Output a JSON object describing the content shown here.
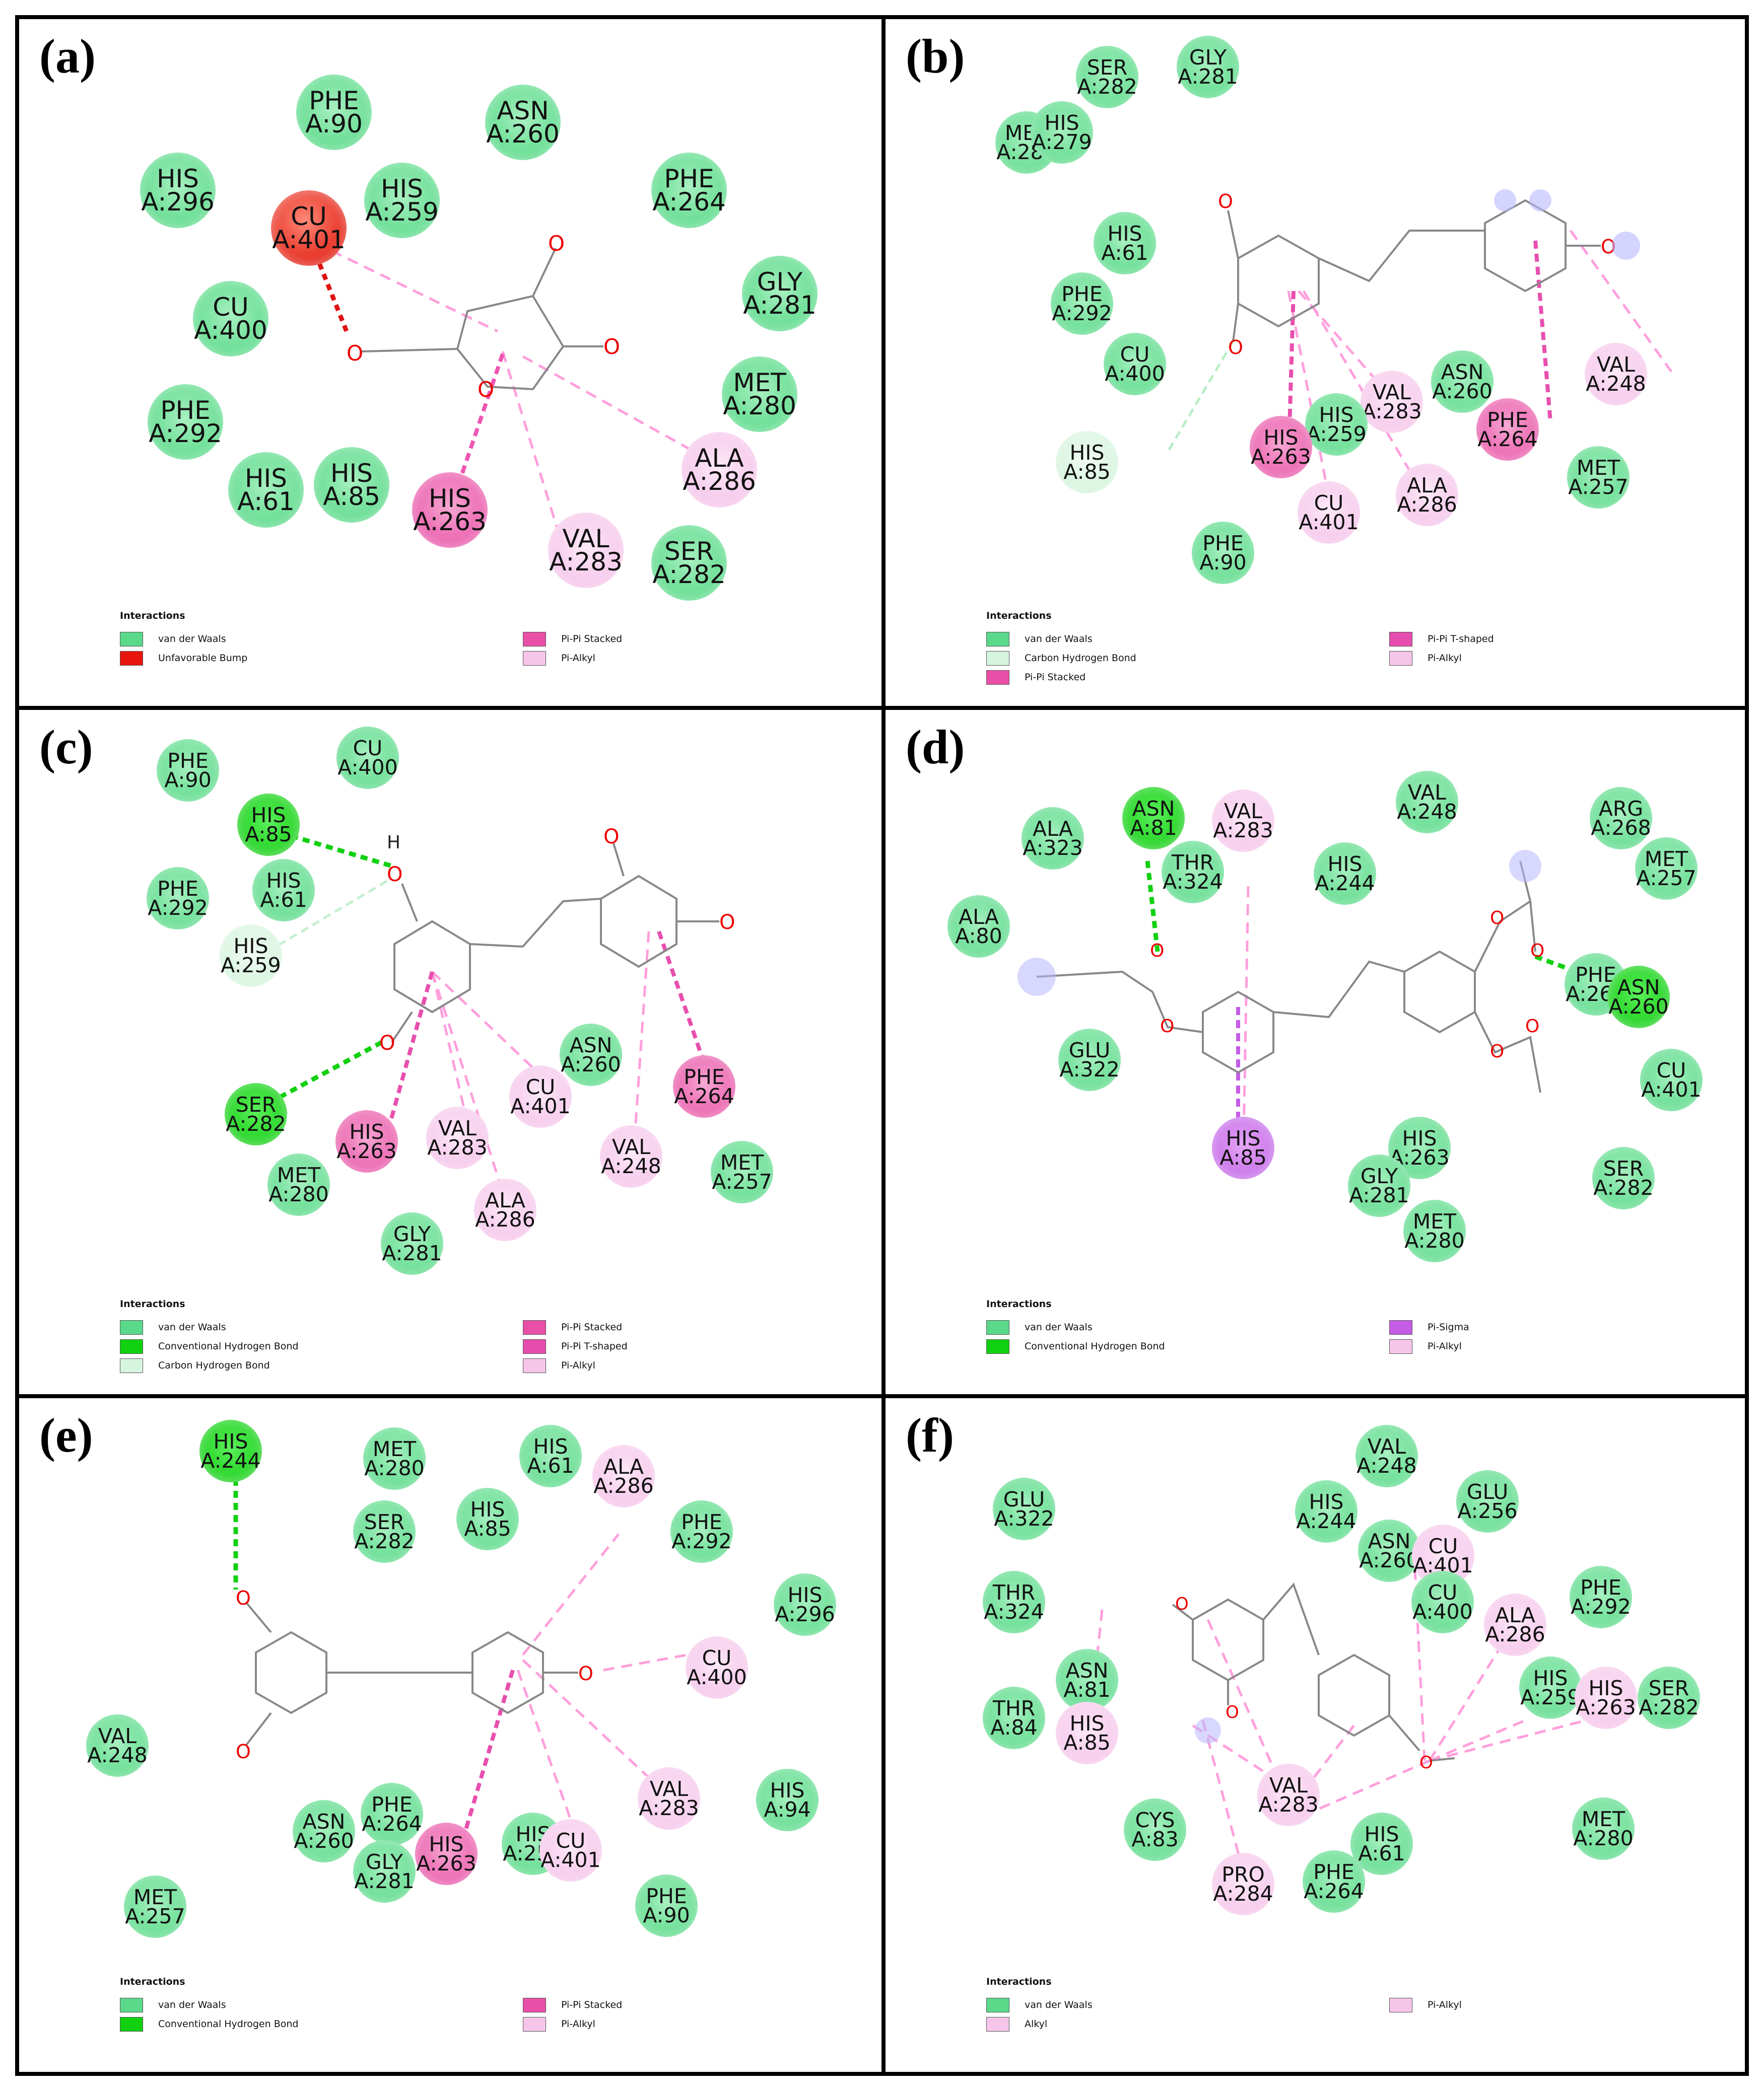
{
  "legend_title": "Interactions",
  "legend_labels": {
    "vdw": "van der Waals",
    "unf": "Unfavorable Bump",
    "pps": "Pi-Pi Stacked",
    "pal": "Pi-Alkyl",
    "chb": "Carbon Hydrogen Bond",
    "chd": "Conventional Hydrogen Bond",
    "pts": "Pi-Pi T-shaped",
    "psg": "Pi-Sigma",
    "alk": "Alkyl"
  },
  "interaction_colors": {
    "vdw": "#5ad98a",
    "unf": "#e8150e",
    "pps": "#ea4fa8",
    "pal": "#f6c6ea",
    "chb": "#d6f5df",
    "chd": "#10d010",
    "pts": "#e64cae",
    "psg": "#c55ce6",
    "alk": "#f6c6ea"
  },
  "panels": [
    {
      "label": "(a)",
      "residues": [
        {
          "n": "PHE",
          "i": "A:90",
          "t": "vdw"
        },
        {
          "n": "ASN",
          "i": "A:260",
          "t": "vdw"
        },
        {
          "n": "HIS",
          "i": "A:296",
          "t": "vdw"
        },
        {
          "n": "HIS",
          "i": "A:259",
          "t": "vdw"
        },
        {
          "n": "PHE",
          "i": "A:264",
          "t": "vdw"
        },
        {
          "n": "CU",
          "i": "A:401",
          "t": "unf"
        },
        {
          "n": "CU",
          "i": "A:400",
          "t": "vdw"
        },
        {
          "n": "GLY",
          "i": "A:281",
          "t": "vdw"
        },
        {
          "n": "MET",
          "i": "A:280",
          "t": "vdw"
        },
        {
          "n": "PHE",
          "i": "A:292",
          "t": "vdw"
        },
        {
          "n": "ALA",
          "i": "A:286",
          "t": "pal"
        },
        {
          "n": "HIS",
          "i": "A:61",
          "t": "vdw"
        },
        {
          "n": "HIS",
          "i": "A:85",
          "t": "vdw"
        },
        {
          "n": "HIS",
          "i": "A:263",
          "t": "pps"
        },
        {
          "n": "VAL",
          "i": "A:283",
          "t": "pal"
        },
        {
          "n": "SER",
          "i": "A:282",
          "t": "vdw"
        }
      ],
      "legend": [
        "vdw",
        "unf",
        "pps",
        "pal"
      ]
    },
    {
      "label": "(b)",
      "residues": [
        {
          "n": "SER",
          "i": "A:282",
          "t": "vdw"
        },
        {
          "n": "GLY",
          "i": "A:281",
          "t": "vdw"
        },
        {
          "n": "MET",
          "i": "A:280",
          "t": "vdw"
        },
        {
          "n": "HIS",
          "i": "A:279",
          "t": "vdw"
        },
        {
          "n": "HIS",
          "i": "A:61",
          "t": "vdw"
        },
        {
          "n": "PHE",
          "i": "A:292",
          "t": "vdw"
        },
        {
          "n": "CU",
          "i": "A:400",
          "t": "vdw"
        },
        {
          "n": "ASN",
          "i": "A:260",
          "t": "vdw"
        },
        {
          "n": "VAL",
          "i": "A:248",
          "t": "pal"
        },
        {
          "n": "VAL",
          "i": "A:283",
          "t": "pal"
        },
        {
          "n": "HIS",
          "i": "A:259",
          "t": "vdw"
        },
        {
          "n": "PHE",
          "i": "A:264",
          "t": "pps"
        },
        {
          "n": "HIS",
          "i": "A:263",
          "t": "pps"
        },
        {
          "n": "HIS",
          "i": "A:85",
          "t": "chb"
        },
        {
          "n": "MET",
          "i": "A:257",
          "t": "vdw"
        },
        {
          "n": "ALA",
          "i": "A:286",
          "t": "pal"
        },
        {
          "n": "CU",
          "i": "A:401",
          "t": "pal"
        },
        {
          "n": "PHE",
          "i": "A:90",
          "t": "vdw"
        }
      ],
      "legend": [
        "vdw",
        "chb",
        "pps",
        "pts",
        "pal"
      ]
    },
    {
      "label": "(c)",
      "residues": [
        {
          "n": "PHE",
          "i": "A:90",
          "t": "vdw"
        },
        {
          "n": "CU",
          "i": "A:400",
          "t": "vdw"
        },
        {
          "n": "HIS",
          "i": "A:85",
          "t": "chd"
        },
        {
          "n": "PHE",
          "i": "A:292",
          "t": "vdw"
        },
        {
          "n": "HIS",
          "i": "A:61",
          "t": "vdw"
        },
        {
          "n": "HIS",
          "i": "A:259",
          "t": "chb"
        },
        {
          "n": "ASN",
          "i": "A:260",
          "t": "vdw"
        },
        {
          "n": "CU",
          "i": "A:401",
          "t": "pal"
        },
        {
          "n": "PHE",
          "i": "A:264",
          "t": "pps"
        },
        {
          "n": "SER",
          "i": "A:282",
          "t": "chd"
        },
        {
          "n": "VAL",
          "i": "A:283",
          "t": "pal"
        },
        {
          "n": "HIS",
          "i": "A:263",
          "t": "pps"
        },
        {
          "n": "VAL",
          "i": "A:248",
          "t": "pal"
        },
        {
          "n": "MET",
          "i": "A:257",
          "t": "vdw"
        },
        {
          "n": "MET",
          "i": "A:280",
          "t": "vdw"
        },
        {
          "n": "ALA",
          "i": "A:286",
          "t": "pal"
        },
        {
          "n": "GLY",
          "i": "A:281",
          "t": "vdw"
        }
      ],
      "legend": [
        "vdw",
        "chd",
        "chb",
        "pps",
        "pts",
        "pal"
      ]
    },
    {
      "label": "(d)",
      "residues": [
        {
          "n": "ASN",
          "i": "A:81",
          "t": "chd"
        },
        {
          "n": "VAL",
          "i": "A:283",
          "t": "pal"
        },
        {
          "n": "VAL",
          "i": "A:248",
          "t": "vdw"
        },
        {
          "n": "ARG",
          "i": "A:268",
          "t": "vdw"
        },
        {
          "n": "ALA",
          "i": "A:323",
          "t": "vdw"
        },
        {
          "n": "THR",
          "i": "A:324",
          "t": "vdw"
        },
        {
          "n": "HIS",
          "i": "A:244",
          "t": "vdw"
        },
        {
          "n": "MET",
          "i": "A:257",
          "t": "vdw"
        },
        {
          "n": "ALA",
          "i": "A:80",
          "t": "vdw"
        },
        {
          "n": "PHE",
          "i": "A:264",
          "t": "vdw"
        },
        {
          "n": "ASN",
          "i": "A:260",
          "t": "chd"
        },
        {
          "n": "GLU",
          "i": "A:322",
          "t": "vdw"
        },
        {
          "n": "CU",
          "i": "A:401",
          "t": "vdw"
        },
        {
          "n": "HIS",
          "i": "A:85",
          "t": "psg"
        },
        {
          "n": "HIS",
          "i": "A:263",
          "t": "vdw"
        },
        {
          "n": "SER",
          "i": "A:282",
          "t": "vdw"
        },
        {
          "n": "GLY",
          "i": "A:281",
          "t": "vdw"
        },
        {
          "n": "MET",
          "i": "A:280",
          "t": "vdw"
        }
      ],
      "legend": [
        "vdw",
        "chd",
        "psg",
        "pal"
      ]
    },
    {
      "label": "(e)",
      "residues": [
        {
          "n": "HIS",
          "i": "A:244",
          "t": "chd"
        },
        {
          "n": "MET",
          "i": "A:280",
          "t": "vdw"
        },
        {
          "n": "HIS",
          "i": "A:61",
          "t": "vdw"
        },
        {
          "n": "ALA",
          "i": "A:286",
          "t": "pal"
        },
        {
          "n": "SER",
          "i": "A:282",
          "t": "vdw"
        },
        {
          "n": "HIS",
          "i": "A:85",
          "t": "vdw"
        },
        {
          "n": "PHE",
          "i": "A:292",
          "t": "vdw"
        },
        {
          "n": "HIS",
          "i": "A:296",
          "t": "vdw"
        },
        {
          "n": "CU",
          "i": "A:400",
          "t": "pal"
        },
        {
          "n": "VAL",
          "i": "A:248",
          "t": "vdw"
        },
        {
          "n": "VAL",
          "i": "A:283",
          "t": "pal"
        },
        {
          "n": "HIS",
          "i": "A:94",
          "t": "vdw"
        },
        {
          "n": "PHE",
          "i": "A:264",
          "t": "vdw"
        },
        {
          "n": "ASN",
          "i": "A:260",
          "t": "vdw"
        },
        {
          "n": "HIS",
          "i": "A:259",
          "t": "vdw"
        },
        {
          "n": "CU",
          "i": "A:401",
          "t": "pal"
        },
        {
          "n": "HIS",
          "i": "A:263",
          "t": "pps"
        },
        {
          "n": "GLY",
          "i": "A:281",
          "t": "vdw"
        },
        {
          "n": "MET",
          "i": "A:257",
          "t": "vdw"
        },
        {
          "n": "PHE",
          "i": "A:90",
          "t": "vdw"
        }
      ],
      "legend": [
        "vdw",
        "chd",
        "pps",
        "pal"
      ]
    },
    {
      "label": "(f)",
      "residues": [
        {
          "n": "VAL",
          "i": "A:248",
          "t": "vdw"
        },
        {
          "n": "GLU",
          "i": "A:322",
          "t": "vdw"
        },
        {
          "n": "HIS",
          "i": "A:244",
          "t": "vdw"
        },
        {
          "n": "GLU",
          "i": "A:256",
          "t": "vdw"
        },
        {
          "n": "ASN",
          "i": "A:260",
          "t": "vdw"
        },
        {
          "n": "CU",
          "i": "A:401",
          "t": "pal"
        },
        {
          "n": "THR",
          "i": "A:324",
          "t": "vdw"
        },
        {
          "n": "CU",
          "i": "A:400",
          "t": "vdw"
        },
        {
          "n": "PHE",
          "i": "A:292",
          "t": "vdw"
        },
        {
          "n": "ALA",
          "i": "A:286",
          "t": "pal"
        },
        {
          "n": "ASN",
          "i": "A:81",
          "t": "vdw"
        },
        {
          "n": "HIS",
          "i": "A:259",
          "t": "vdw"
        },
        {
          "n": "HIS",
          "i": "A:263",
          "t": "pal"
        },
        {
          "n": "SER",
          "i": "A:282",
          "t": "vdw"
        },
        {
          "n": "THR",
          "i": "A:84",
          "t": "vdw"
        },
        {
          "n": "HIS",
          "i": "A:85",
          "t": "pal"
        },
        {
          "n": "VAL",
          "i": "A:283",
          "t": "pal"
        },
        {
          "n": "CYS",
          "i": "A:83",
          "t": "vdw"
        },
        {
          "n": "HIS",
          "i": "A:61",
          "t": "vdw"
        },
        {
          "n": "MET",
          "i": "A:280",
          "t": "vdw"
        },
        {
          "n": "PRO",
          "i": "A:284",
          "t": "pal"
        },
        {
          "n": "PHE",
          "i": "A:264",
          "t": "vdw"
        }
      ],
      "legend": [
        "vdw",
        "alk",
        "pal"
      ]
    }
  ]
}
